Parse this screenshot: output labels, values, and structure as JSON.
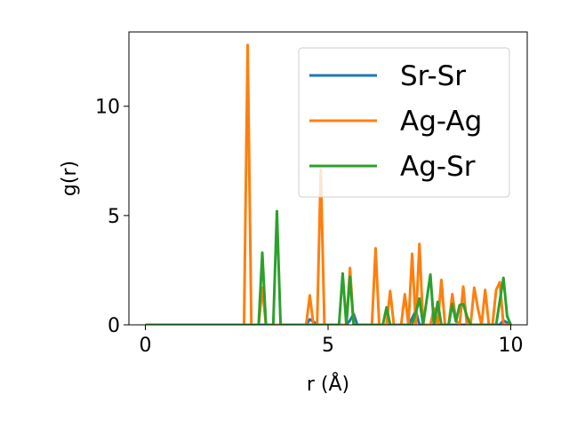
{
  "chart_data": {
    "type": "line",
    "xlabel": "r (Å)",
    "ylabel": "g(r)",
    "xlim": [
      -0.45,
      10.45
    ],
    "ylim": [
      0,
      13.4
    ],
    "xticks": [
      0,
      5,
      10
    ],
    "yticks": [
      0,
      5,
      10
    ],
    "grid": false,
    "legend": "top-right",
    "series": [
      {
        "name": "Sr-Sr",
        "color": "#1f77b4",
        "x": [
          0,
          4.4,
          4.5,
          4.6,
          4.7,
          5.5,
          5.6,
          5.7,
          5.8,
          7.2,
          7.3,
          7.4,
          7.5,
          9.7,
          9.8,
          9.9,
          10.0
        ],
        "y": [
          0,
          0,
          0.25,
          0.15,
          0,
          0,
          0.2,
          0.5,
          0,
          0,
          0.3,
          0.65,
          0,
          0,
          0.2,
          0.1,
          0
        ]
      },
      {
        "name": "Ag-Ag",
        "color": "#ff7f0e",
        "x": [
          0,
          2.6,
          2.7,
          2.8,
          2.9,
          3.1,
          3.2,
          3.3,
          3.4,
          4.4,
          4.5,
          4.6,
          4.7,
          4.8,
          4.9,
          5.0,
          5.1,
          5.5,
          5.6,
          5.7,
          5.8,
          6.2,
          6.3,
          6.4,
          6.6,
          6.7,
          6.8,
          7.0,
          7.1,
          7.2,
          7.3,
          7.4,
          7.5,
          7.6,
          7.8,
          7.9,
          8.0,
          8.1,
          8.2,
          8.3,
          8.4,
          8.5,
          8.6,
          8.7,
          8.8,
          8.9,
          9.0,
          9.1,
          9.2,
          9.3,
          9.4,
          9.5,
          9.6,
          9.7,
          9.8,
          9.9,
          10.0
        ],
        "y": [
          0,
          0,
          0,
          12.8,
          0,
          0,
          1.7,
          0,
          0,
          0,
          1.35,
          0,
          0,
          7.1,
          0,
          0,
          0,
          0,
          2.6,
          0,
          0,
          0,
          3.5,
          0,
          0,
          1.55,
          0,
          0,
          1.4,
          0,
          3.25,
          0,
          3.7,
          0,
          0,
          0.75,
          0,
          2.05,
          0,
          0,
          1.4,
          0.2,
          0,
          1.75,
          0,
          0,
          1.7,
          0.75,
          0,
          1.6,
          0,
          0,
          1.6,
          1.95,
          0,
          0,
          0
        ]
      },
      {
        "name": "Ag-Sr",
        "color": "#2ca02c",
        "x": [
          0,
          3.1,
          3.2,
          3.3,
          3.4,
          3.5,
          3.6,
          3.7,
          5.3,
          5.4,
          5.5,
          5.6,
          5.7,
          5.8,
          6.5,
          6.6,
          6.7,
          7.3,
          7.4,
          7.5,
          7.6,
          7.8,
          7.9,
          8.0,
          8.1,
          8.2,
          8.3,
          8.4,
          8.5,
          8.6,
          8.7,
          8.8,
          8.9,
          9.0,
          9.6,
          9.7,
          9.8,
          9.9,
          10.0
        ],
        "y": [
          0,
          0,
          3.3,
          0,
          0,
          0,
          5.2,
          0,
          0,
          2.35,
          0,
          2.2,
          0,
          0,
          0,
          0.8,
          0,
          0,
          0.55,
          1.2,
          0,
          2.3,
          0,
          1.05,
          0,
          0,
          0,
          0.95,
          0.15,
          0.9,
          0.95,
          0.4,
          0,
          0,
          0,
          1.1,
          2.15,
          0.4,
          0
        ]
      }
    ]
  }
}
